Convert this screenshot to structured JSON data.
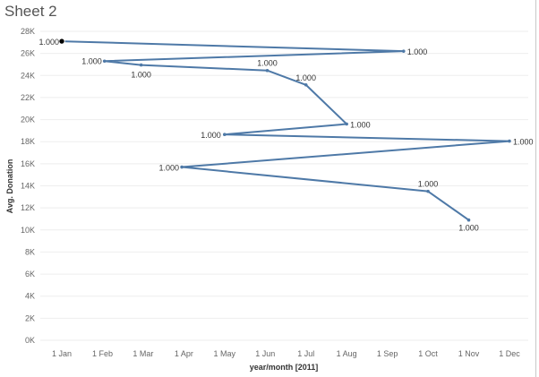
{
  "sheet": {
    "title": "Sheet 2"
  },
  "colors": {
    "line": "#4e79a7",
    "grid": "#eeeeee",
    "axis_text": "#666666",
    "highlight": "#000000"
  },
  "chart_data": {
    "type": "line",
    "xlabel": "year/month [2011]",
    "ylabel": "Avg. Donation",
    "ylim": [
      0,
      28000
    ],
    "grid": true,
    "categories": [
      "1 Jan",
      "1 Feb",
      "1 Mar",
      "1 Apr",
      "1 May",
      "1 Jun",
      "1 Jul",
      "1 Aug",
      "1 Sep",
      "1 Oct",
      "1 Nov",
      "1 Dec"
    ],
    "y_ticks": [
      {
        "value": 0,
        "label": "0K"
      },
      {
        "value": 2000,
        "label": "2K"
      },
      {
        "value": 4000,
        "label": "4K"
      },
      {
        "value": 6000,
        "label": "6K"
      },
      {
        "value": 8000,
        "label": "8K"
      },
      {
        "value": 10000,
        "label": "10K"
      },
      {
        "value": 12000,
        "label": "12K"
      },
      {
        "value": 14000,
        "label": "14K"
      },
      {
        "value": 16000,
        "label": "16K"
      },
      {
        "value": 18000,
        "label": "18K"
      },
      {
        "value": 20000,
        "label": "20K"
      },
      {
        "value": 22000,
        "label": "22K"
      },
      {
        "value": 24000,
        "label": "24K"
      },
      {
        "value": 26000,
        "label": "26K"
      },
      {
        "value": 28000,
        "label": "28K"
      }
    ],
    "points": [
      {
        "x": 0,
        "y": 27100,
        "label": "1.000",
        "highlight": true
      },
      {
        "x": 8.4,
        "y": 26200,
        "label": "1.000"
      },
      {
        "x": 1.05,
        "y": 25300,
        "label": "1.000"
      },
      {
        "x": 1.95,
        "y": 24950,
        "label": "1.000"
      },
      {
        "x": 5.05,
        "y": 24450,
        "label": "1.000"
      },
      {
        "x": 6.0,
        "y": 23150,
        "label": "1.000"
      },
      {
        "x": 7.0,
        "y": 19600,
        "label": "1.000"
      },
      {
        "x": 4.0,
        "y": 18650,
        "label": "1.000"
      },
      {
        "x": 11.0,
        "y": 18050,
        "label": "1.000"
      },
      {
        "x": 2.95,
        "y": 15700,
        "label": "1.000"
      },
      {
        "x": 9.0,
        "y": 13500,
        "label": "1.000"
      },
      {
        "x": 10.0,
        "y": 10900,
        "label": "1.000"
      }
    ]
  }
}
